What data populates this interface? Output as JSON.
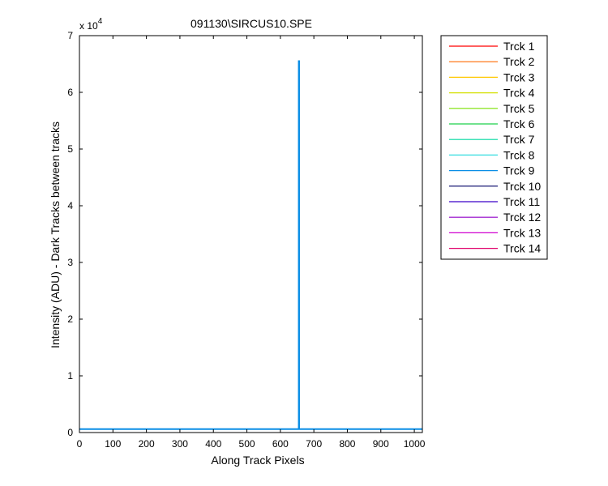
{
  "chart_data": {
    "type": "line",
    "title": "091130\\SIRCUS10.SPE",
    "xlabel": "Along Track Pixels",
    "ylabel": "Intensity (ADU) - Dark Tracks between tracks",
    "xlim": [
      0,
      1024
    ],
    "ylim": [
      0,
      70000
    ],
    "y_exponent_label": "x 10",
    "y_exponent_power": "4",
    "x_ticks": [
      0,
      100,
      200,
      300,
      400,
      500,
      600,
      700,
      800,
      900,
      1000
    ],
    "x_tick_labels": [
      "0",
      "100",
      "200",
      "300",
      "400",
      "500",
      "600",
      "700",
      "800",
      "900",
      "1000"
    ],
    "y_ticks": [
      0,
      10000,
      20000,
      30000,
      40000,
      50000,
      60000,
      70000
    ],
    "y_tick_labels": [
      "0",
      "1",
      "2",
      "3",
      "4",
      "5",
      "6",
      "7"
    ],
    "grid": false,
    "legend_position": "outside-right",
    "series": [
      {
        "name": "Trck 1",
        "color": "#ff0000",
        "x": [
          0,
          1024
        ],
        "y": [
          600,
          600
        ]
      },
      {
        "name": "Trck 2",
        "color": "#ff6a00",
        "x": [
          0,
          1024
        ],
        "y": [
          600,
          600
        ]
      },
      {
        "name": "Trck 3",
        "color": "#ffc800",
        "x": [
          0,
          1024
        ],
        "y": [
          600,
          600
        ]
      },
      {
        "name": "Trck 4",
        "color": "#d4e000",
        "x": [
          0,
          1024
        ],
        "y": [
          600,
          600
        ]
      },
      {
        "name": "Trck 5",
        "color": "#7be000",
        "x": [
          0,
          1024
        ],
        "y": [
          600,
          600
        ]
      },
      {
        "name": "Trck 6",
        "color": "#1ed14a",
        "x": [
          0,
          1024
        ],
        "y": [
          600,
          600
        ]
      },
      {
        "name": "Trck 7",
        "color": "#00d9a0",
        "x": [
          0,
          1024
        ],
        "y": [
          600,
          600
        ]
      },
      {
        "name": "Trck 8",
        "color": "#33dde0",
        "x": [
          0,
          1024
        ],
        "y": [
          600,
          600
        ]
      },
      {
        "name": "Trck 9",
        "color": "#0a8ee6",
        "x": [
          0,
          655,
          655,
          656,
          656,
          1024
        ],
        "y": [
          600,
          600,
          65500,
          65500,
          600,
          600
        ]
      },
      {
        "name": "Trck 10",
        "color": "#000066",
        "x": [
          0,
          1024
        ],
        "y": [
          600,
          600
        ]
      },
      {
        "name": "Trck 11",
        "color": "#3a00c8",
        "x": [
          0,
          1024
        ],
        "y": [
          600,
          600
        ]
      },
      {
        "name": "Trck 12",
        "color": "#9000c8",
        "x": [
          0,
          1024
        ],
        "y": [
          600,
          600
        ]
      },
      {
        "name": "Trck 13",
        "color": "#d000d0",
        "x": [
          0,
          1024
        ],
        "y": [
          600,
          600
        ]
      },
      {
        "name": "Trck 14",
        "color": "#e0006a",
        "x": [
          0,
          1024
        ],
        "y": [
          600,
          600
        ]
      }
    ]
  }
}
